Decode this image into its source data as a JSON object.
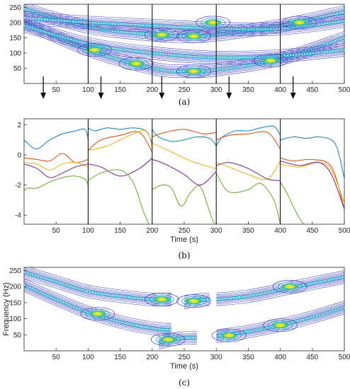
{
  "chart_data": [
    {
      "id": "a",
      "type": "contour",
      "panel_label": "(a)",
      "xlabel": "",
      "ylabel": "",
      "xlim": [
        0,
        500
      ],
      "ylim": [
        0,
        260
      ],
      "xticks": [
        50,
        100,
        150,
        200,
        250,
        300,
        350,
        400,
        450,
        500
      ],
      "yticks": [
        50,
        100,
        150,
        200,
        250
      ],
      "segment_boundaries": [
        100,
        200,
        300,
        400
      ],
      "arrows_x": [
        30,
        120,
        215,
        320,
        420
      ],
      "tracks": [
        {
          "name": "",
          "x": [
            0,
            100,
            200,
            250,
            300,
            400,
            500
          ],
          "y": [
            200,
            110,
            50,
            40,
            45,
            80,
            150
          ]
        },
        {
          "name": "",
          "x": [
            0,
            100,
            200,
            250,
            300,
            400,
            500
          ],
          "y": [
            245,
            185,
            160,
            155,
            160,
            190,
            235
          ]
        },
        {
          "name": "",
          "x": [
            0,
            100,
            200,
            300,
            400,
            500
          ],
          "y": [
            215,
            200,
            190,
            180,
            180,
            205
          ]
        },
        {
          "name": "",
          "x": [
            0,
            100,
            200,
            300,
            400,
            500
          ],
          "y": [
            190,
            130,
            100,
            85,
            90,
            110
          ]
        }
      ],
      "hotspots": [
        {
          "x": 215,
          "y": 160
        },
        {
          "x": 265,
          "y": 155
        },
        {
          "x": 295,
          "y": 200
        },
        {
          "x": 175,
          "y": 65
        },
        {
          "x": 265,
          "y": 40
        },
        {
          "x": 385,
          "y": 75
        },
        {
          "x": 110,
          "y": 110
        },
        {
          "x": 430,
          "y": 200
        }
      ]
    },
    {
      "id": "b",
      "type": "line",
      "panel_label": "(b)",
      "xlabel": "Time (s)",
      "ylabel": "",
      "xlim": [
        0,
        500
      ],
      "ylim": [
        -4.6,
        2.4
      ],
      "xticks": [
        50,
        100,
        150,
        200,
        250,
        300,
        350,
        400,
        450,
        500
      ],
      "yticks": [
        2,
        0,
        -2,
        -4
      ],
      "segment_boundaries": [
        100,
        200,
        300,
        400
      ],
      "series": [
        {
          "name": "",
          "color": "#1f8ac6",
          "segments": [
            {
              "x": [
                0,
                5,
                20,
                40,
                60,
                80,
                95,
                100
              ],
              "y": [
                1.0,
                0.8,
                0.4,
                1.0,
                1.4,
                1.6,
                1.7,
                1.1
              ]
            },
            {
              "x": [
                100,
                110,
                130,
                150,
                170,
                190,
                200
              ],
              "y": [
                1.8,
                1.6,
                1.8,
                1.7,
                1.8,
                1.6,
                0.8
              ]
            },
            {
              "x": [
                200,
                210,
                230,
                250,
                270,
                290,
                300
              ],
              "y": [
                1.7,
                1.2,
                0.9,
                1.0,
                1.2,
                1.1,
                0.6
              ]
            },
            {
              "x": [
                300,
                310,
                330,
                350,
                370,
                390,
                400
              ],
              "y": [
                0.6,
                1.2,
                1.6,
                1.6,
                1.8,
                1.9,
                1.3
              ]
            },
            {
              "x": [
                400,
                420,
                440,
                460,
                480,
                490,
                500
              ],
              "y": [
                1.0,
                1.2,
                1.1,
                1.2,
                1.0,
                0.3,
                -1.6
              ]
            }
          ]
        },
        {
          "name": "",
          "color": "#d9541a",
          "segments": [
            {
              "x": [
                0,
                20,
                40,
                60,
                80,
                100
              ],
              "y": [
                -0.2,
                -0.3,
                -0.4,
                0.1,
                -0.5,
                -0.3
              ]
            },
            {
              "x": [
                100,
                120,
                150,
                180,
                200
              ],
              "y": [
                0.3,
                1.0,
                1.3,
                1.5,
                0.2
              ]
            },
            {
              "x": [
                200,
                220,
                250,
                280,
                300
              ],
              "y": [
                1.2,
                1.5,
                1.7,
                1.4,
                1.5
              ]
            },
            {
              "x": [
                300,
                320,
                350,
                380,
                400
              ],
              "y": [
                1.0,
                1.3,
                1.4,
                1.5,
                0.4
              ]
            },
            {
              "x": [
                400,
                420,
                450,
                480,
                500
              ],
              "y": [
                -0.2,
                -0.4,
                -0.3,
                -0.8,
                -3.6
              ]
            }
          ]
        },
        {
          "name": "",
          "color": "#edb120",
          "segments": [
            {
              "x": [
                0,
                20,
                40,
                60,
                80,
                100
              ],
              "y": [
                -0.5,
                -0.6,
                -1.0,
                -0.6,
                -0.5,
                -0.8
              ]
            },
            {
              "x": [
                100,
                130,
                160,
                190,
                200
              ],
              "y": [
                0.3,
                0.6,
                1.2,
                1.6,
                0.5
              ]
            },
            {
              "x": [
                200,
                230,
                260,
                290,
                300
              ],
              "y": [
                0.8,
                0.2,
                -0.4,
                -0.8,
                -0.9
              ]
            },
            {
              "x": [
                300,
                320,
                350,
                380,
                400
              ],
              "y": [
                -0.5,
                -0.8,
                -1.3,
                -1.6,
                -0.4
              ]
            },
            {
              "x": [
                400,
                430,
                460,
                480,
                500
              ],
              "y": [
                -0.6,
                -0.8,
                -0.5,
                -1.0,
                -3.2
              ]
            }
          ]
        },
        {
          "name": "",
          "color": "#7e2f8e",
          "segments": [
            {
              "x": [
                0,
                20,
                40,
                60,
                80,
                100
              ],
              "y": [
                -0.6,
                -0.9,
                -1.5,
                -1.2,
                -0.8,
                -0.6
              ]
            },
            {
              "x": [
                100,
                120,
                150,
                180,
                200
              ],
              "y": [
                -0.6,
                -0.8,
                -1.4,
                -0.9,
                -0.2
              ]
            },
            {
              "x": [
                200,
                220,
                250,
                275,
                300
              ],
              "y": [
                -0.3,
                -0.6,
                -1.3,
                -2.0,
                -1.1
              ]
            },
            {
              "x": [
                300,
                320,
                350,
                380,
                400
              ],
              "y": [
                -0.7,
                -0.5,
                -0.9,
                -1.6,
                -1.7
              ]
            },
            {
              "x": [
                400,
                430,
                460,
                480,
                500
              ],
              "y": [
                -0.4,
                -0.7,
                -0.5,
                -1.3,
                -3.6
              ]
            }
          ]
        },
        {
          "name": "",
          "color": "#77ac30",
          "segments": [
            {
              "x": [
                0,
                5,
                20,
                40,
                60,
                80,
                95,
                100
              ],
              "y": [
                -2.4,
                -2.2,
                -2.2,
                -1.8,
                -1.5,
                -1.4,
                -1.6,
                -2.0
              ]
            },
            {
              "x": [
                100,
                120,
                150,
                170,
                185,
                195
              ],
              "y": [
                -1.7,
                -1.2,
                -1.0,
                -1.8,
                -3.6,
                -4.6
              ]
            },
            {
              "x": [
                200,
                215,
                230,
                245,
                260,
                275,
                290,
                297
              ],
              "y": [
                -2.3,
                -2.0,
                -2.2,
                -3.4,
                -2.5,
                -2.1,
                -3.8,
                -4.6
              ]
            },
            {
              "x": [
                300,
                315,
                330,
                350,
                370,
                390,
                400
              ],
              "y": [
                -1.2,
                -2.3,
                -2.5,
                -2.3,
                -1.9,
                -3.0,
                -4.6
              ]
            },
            {
              "x": [
                400,
                410,
                420,
                430,
                437
              ],
              "y": [
                -1.8,
                -2.5,
                -3.4,
                -4.2,
                -4.6
              ]
            }
          ]
        }
      ]
    },
    {
      "id": "c",
      "type": "contour",
      "panel_label": "(c)",
      "xlabel": "Time (s)",
      "ylabel": "Frequency (Hz)",
      "xlim": [
        0,
        500
      ],
      "ylim": [
        0,
        260
      ],
      "xticks": [
        50,
        100,
        150,
        200,
        250,
        300,
        350,
        400,
        450,
        500
      ],
      "yticks": [
        50,
        100,
        150,
        200,
        250
      ],
      "tracks": [
        {
          "name": "",
          "x": [
            0,
            50,
            100,
            150,
            200,
            230
          ],
          "y": [
            245,
            215,
            185,
            170,
            160,
            160
          ]
        },
        {
          "name": "",
          "x": [
            0,
            50,
            100,
            150,
            200,
            230
          ],
          "y": [
            205,
            160,
            120,
            90,
            70,
            65
          ]
        },
        {
          "name": "",
          "x": [
            300,
            350,
            400,
            450,
            500
          ],
          "y": [
            160,
            170,
            190,
            210,
            230
          ]
        },
        {
          "name": "",
          "x": [
            300,
            350,
            400,
            450,
            500
          ],
          "y": [
            45,
            60,
            80,
            105,
            135
          ]
        },
        {
          "name": "",
          "x": [
            210,
            230,
            250,
            270
          ],
          "y": [
            25,
            35,
            40,
            40
          ]
        },
        {
          "name": "",
          "x": [
            250,
            270,
            290
          ],
          "y": [
            150,
            158,
            160
          ]
        }
      ],
      "hotspots": [
        {
          "x": 215,
          "y": 160
        },
        {
          "x": 265,
          "y": 155
        },
        {
          "x": 225,
          "y": 35
        },
        {
          "x": 115,
          "y": 115
        },
        {
          "x": 400,
          "y": 80
        },
        {
          "x": 415,
          "y": 200
        },
        {
          "x": 320,
          "y": 48
        }
      ]
    }
  ]
}
